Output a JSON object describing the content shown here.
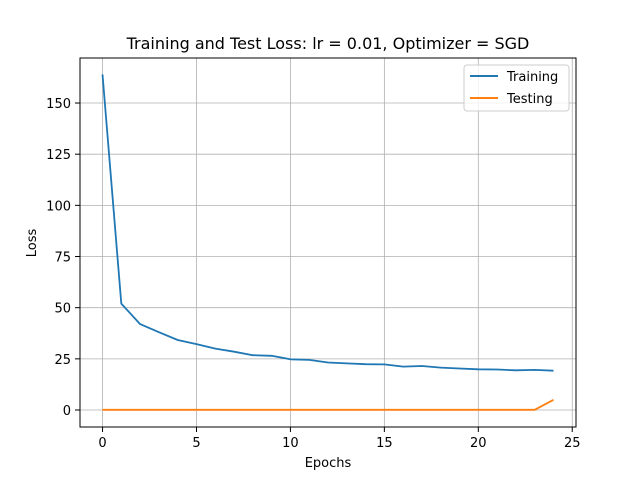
{
  "chart_data": {
    "type": "line",
    "title": "Training and Test Loss: lr = 0.01, Optimizer = SGD",
    "xlabel": "Epochs",
    "ylabel": "Loss",
    "xlim": [
      -1.2,
      25.2
    ],
    "ylim": [
      -8.3,
      172
    ],
    "xticks": [
      0,
      5,
      10,
      15,
      20,
      25
    ],
    "yticks": [
      0,
      25,
      50,
      75,
      100,
      125,
      150
    ],
    "grid": true,
    "legend_position": "top-right",
    "series": [
      {
        "name": "Training",
        "color": "#1f77b4",
        "x": [
          0,
          1,
          2,
          3,
          4,
          5,
          6,
          7,
          8,
          9,
          10,
          11,
          12,
          13,
          14,
          15,
          16,
          17,
          18,
          19,
          20,
          21,
          22,
          23,
          24
        ],
        "values": [
          164,
          52,
          42,
          38,
          34.2,
          32.2,
          30,
          28.5,
          26.8,
          26.5,
          24.8,
          24.5,
          23.2,
          22.8,
          22.4,
          22.3,
          21.2,
          21.5,
          20.7,
          20.3,
          19.9,
          19.8,
          19.4,
          19.6,
          19.2
        ]
      },
      {
        "name": "Testing",
        "color": "#ff7f0e",
        "x": [
          0,
          1,
          2,
          3,
          4,
          5,
          6,
          7,
          8,
          9,
          10,
          11,
          12,
          13,
          14,
          15,
          16,
          17,
          18,
          19,
          20,
          21,
          22,
          23,
          24
        ],
        "values": [
          0.1,
          0.1,
          0.1,
          0.1,
          0.1,
          0.1,
          0.1,
          0.1,
          0.1,
          0.1,
          0.1,
          0.1,
          0.1,
          0.1,
          0.1,
          0.1,
          0.1,
          0.1,
          0.1,
          0.1,
          0.1,
          0.1,
          0.1,
          0.1,
          5
        ]
      }
    ]
  }
}
